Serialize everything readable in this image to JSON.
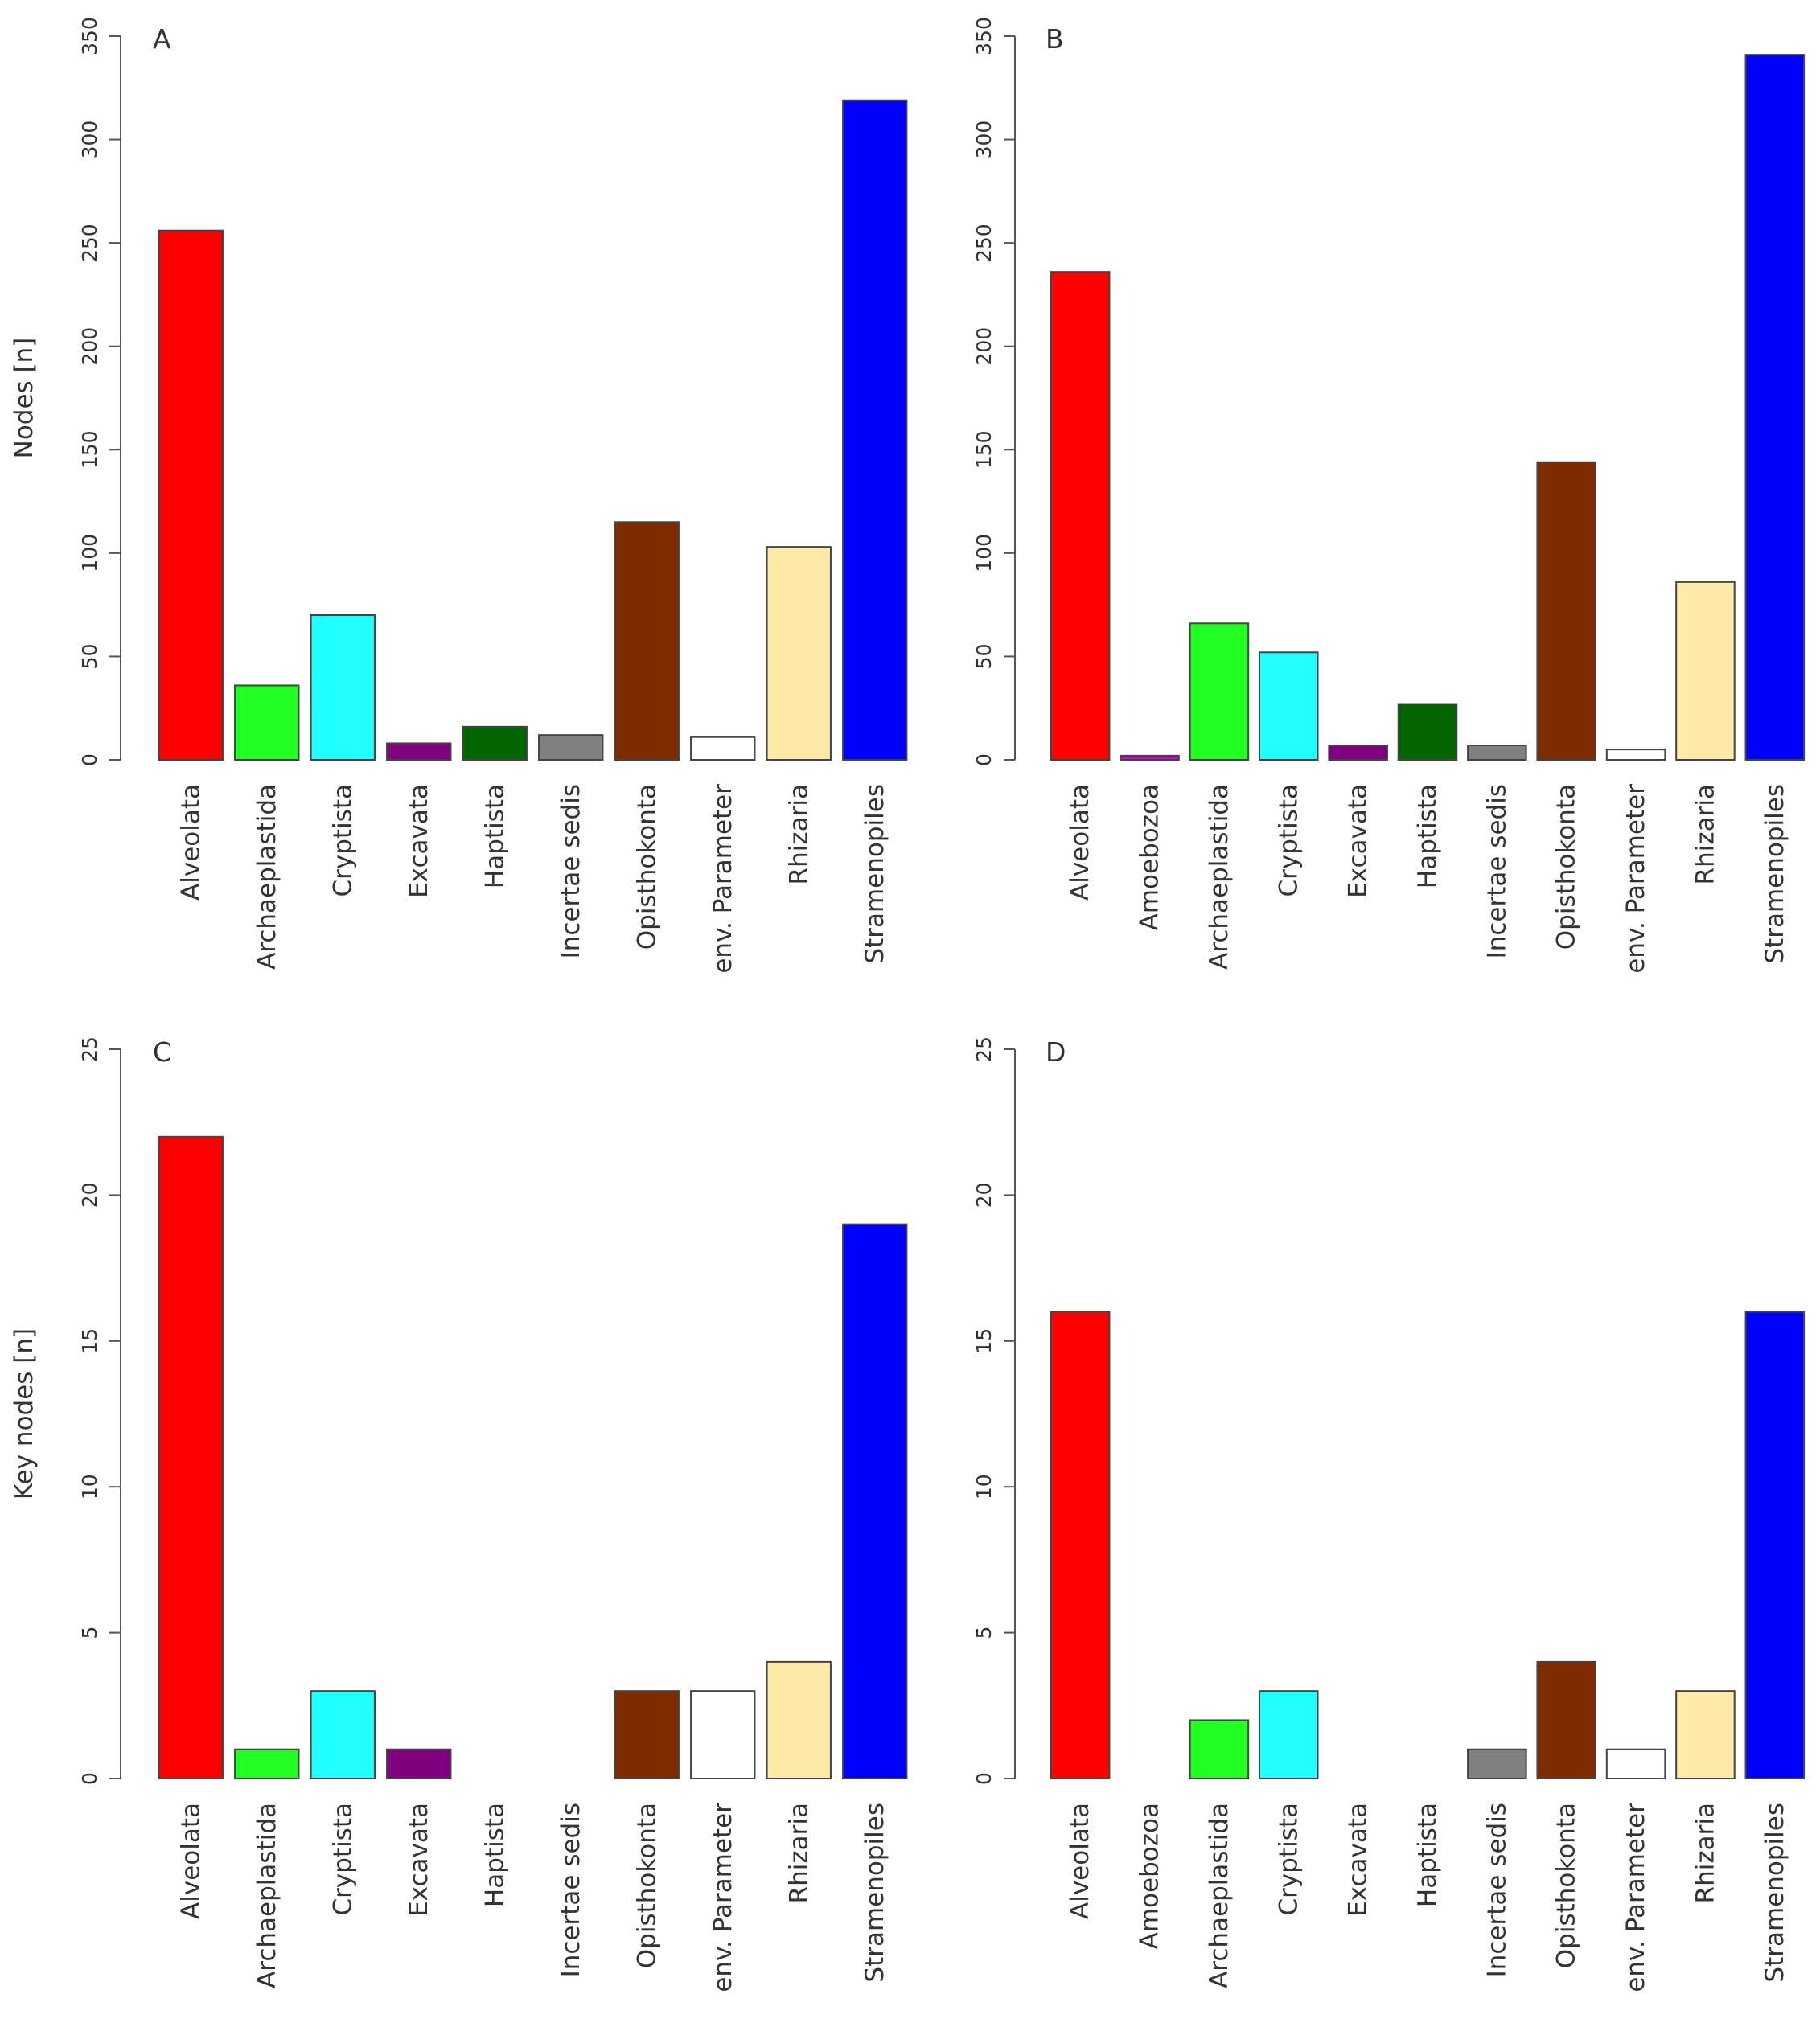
{
  "chart_data": [
    {
      "type": "bar",
      "panel_label": "A",
      "ylabel": "Nodes [n]",
      "ylim": [
        0,
        350
      ],
      "yticks": [
        0,
        50,
        100,
        150,
        200,
        250,
        300,
        350
      ],
      "categories": [
        "Alveolata",
        "Archaeplastida",
        "Cryptista",
        "Excavata",
        "Haptista",
        "Incertae sedis",
        "Opisthokonta",
        "env. Parameter",
        "Rhizaria",
        "Stramenopiles"
      ],
      "values": [
        256,
        36,
        70,
        8,
        16,
        12,
        115,
        11,
        103,
        319
      ],
      "colors": [
        "#ff0000",
        "#22ff22",
        "#22ffff",
        "#800080",
        "#006400",
        "#808080",
        "#7f2b00",
        "#ffffff",
        "#ffeaaa",
        "#0000ff"
      ]
    },
    {
      "type": "bar",
      "panel_label": "B",
      "ylabel": "",
      "ylim": [
        0,
        350
      ],
      "yticks": [
        0,
        50,
        100,
        150,
        200,
        250,
        300,
        350
      ],
      "categories": [
        "Alveolata",
        "Amoebozoa",
        "Archaeplastida",
        "Cryptista",
        "Excavata",
        "Haptista",
        "Incertae sedis",
        "Opisthokonta",
        "env. Parameter",
        "Rhizaria",
        "Stramenopiles"
      ],
      "values": [
        236,
        2,
        66,
        52,
        7,
        27,
        7,
        144,
        5,
        86,
        341
      ],
      "colors": [
        "#ff0000",
        "#cc00cc",
        "#22ff22",
        "#22ffff",
        "#800080",
        "#006400",
        "#808080",
        "#7f2b00",
        "#ffffff",
        "#ffeaaa",
        "#0000ff"
      ]
    },
    {
      "type": "bar",
      "panel_label": "C",
      "ylabel": "Key nodes [n]",
      "ylim": [
        0,
        25
      ],
      "yticks": [
        0,
        5,
        10,
        15,
        20,
        25
      ],
      "categories": [
        "Alveolata",
        "Archaeplastida",
        "Cryptista",
        "Excavata",
        "Haptista",
        "Incertae sedis",
        "Opisthokonta",
        "env. Parameter",
        "Rhizaria",
        "Stramenopiles"
      ],
      "values": [
        22,
        1,
        3,
        1,
        0,
        0,
        3,
        3,
        4,
        19
      ],
      "colors": [
        "#ff0000",
        "#22ff22",
        "#22ffff",
        "#800080",
        "#006400",
        "#808080",
        "#7f2b00",
        "#ffffff",
        "#ffeaaa",
        "#0000ff"
      ]
    },
    {
      "type": "bar",
      "panel_label": "D",
      "ylabel": "",
      "ylim": [
        0,
        25
      ],
      "yticks": [
        0,
        5,
        10,
        15,
        20,
        25
      ],
      "categories": [
        "Alveolata",
        "Amoebozoa",
        "Archaeplastida",
        "Cryptista",
        "Excavata",
        "Haptista",
        "Incertae sedis",
        "Opisthokonta",
        "env. Parameter",
        "Rhizaria",
        "Stramenopiles"
      ],
      "values": [
        16,
        0,
        2,
        3,
        0,
        0,
        1,
        4,
        1,
        3,
        16
      ],
      "colors": [
        "#ff0000",
        "#cc00cc",
        "#22ff22",
        "#22ffff",
        "#800080",
        "#006400",
        "#808080",
        "#7f2b00",
        "#ffffff",
        "#ffeaaa",
        "#0000ff"
      ]
    }
  ]
}
